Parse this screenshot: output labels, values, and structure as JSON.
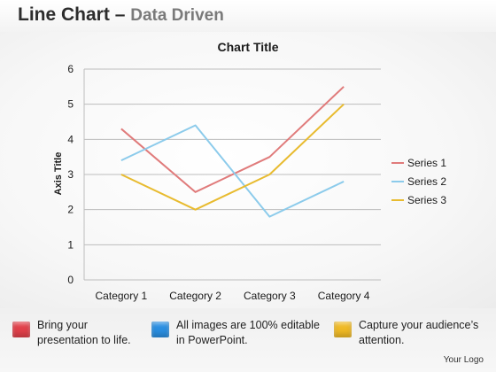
{
  "header": {
    "title": "Line Chart",
    "dash": "–",
    "subtitle": "Data Driven"
  },
  "chart_data": {
    "type": "line",
    "title": "Chart Title",
    "xlabel": "",
    "ylabel": "Axis Title",
    "categories": [
      "Category 1",
      "Category 2",
      "Category 3",
      "Category 4"
    ],
    "ylim": [
      0,
      6
    ],
    "yticks": [
      0,
      1,
      2,
      3,
      4,
      5,
      6
    ],
    "grid": true,
    "legend_position": "right",
    "series": [
      {
        "name": "Series 1",
        "values": [
          4.3,
          2.5,
          3.5,
          5.5
        ],
        "color": "#e07b7b"
      },
      {
        "name": "Series 2",
        "values": [
          3.4,
          4.4,
          1.8,
          2.8
        ],
        "color": "#8ccbeb"
      },
      {
        "name": "Series 3",
        "values": [
          3.0,
          2.0,
          3.0,
          5.0
        ],
        "color": "#e8bb2f"
      }
    ]
  },
  "features": [
    {
      "line1": "Bring your",
      "line2": "presentation to life.",
      "color": "#e0404a"
    },
    {
      "line1": "All images are 100% editable",
      "line2": "in PowerPoint.",
      "color": "#2a8ee0"
    },
    {
      "line1": "Capture your audience’s",
      "line2": "attention.",
      "color": "#efb925"
    }
  ],
  "logo": "Your Logo"
}
